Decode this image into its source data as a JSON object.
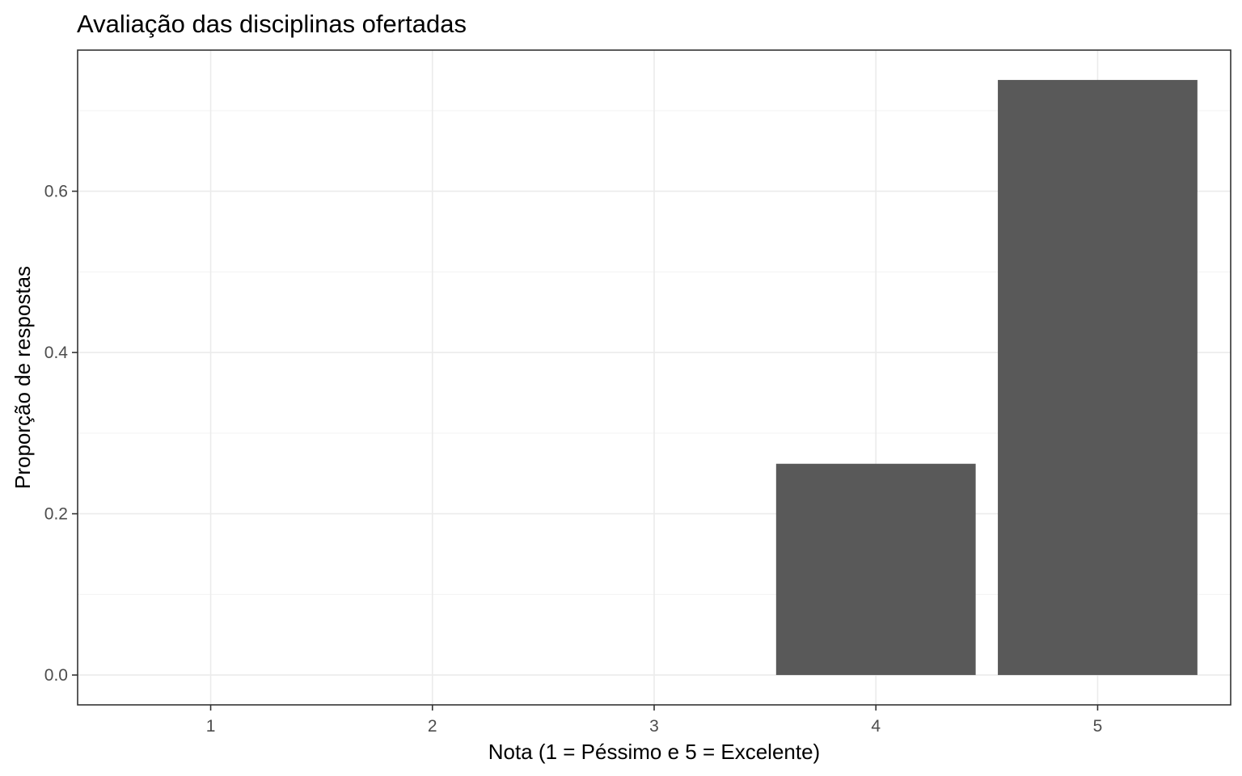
{
  "chart_data": {
    "type": "bar",
    "title": "Avaliação das disciplinas ofertadas",
    "xlabel": "Nota (1 = Péssimo e 5 = Excelente)",
    "ylabel": "Proporção de respostas",
    "categories": [
      "1",
      "2",
      "3",
      "4",
      "5"
    ],
    "values": [
      0,
      0,
      0,
      0.262,
      0.738
    ],
    "yticks": [
      "0.0",
      "0.2",
      "0.4",
      "0.6"
    ],
    "ytick_values": [
      0,
      0.2,
      0.4,
      0.6
    ],
    "ylim": [
      -0.037,
      0.775
    ],
    "xlim": [
      0.4,
      5.6
    ],
    "grid": true,
    "bar_color": "#595959",
    "background": "#ffffff"
  }
}
